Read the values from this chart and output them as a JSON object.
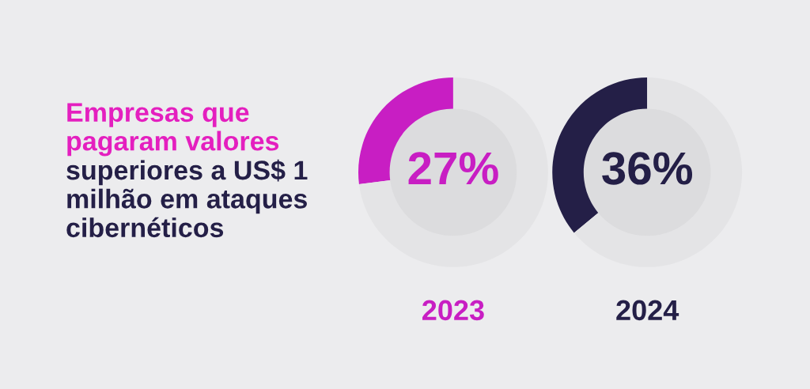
{
  "chart_data": [
    {
      "type": "other",
      "title": "Empresas que pagaram valores",
      "subtitle": "superiores a US$ 1 milhão em ataques cibernéticos"
    },
    {
      "type": "donut",
      "title": "2023",
      "categories": [
        null,
        null
      ],
      "values": [
        27,
        73
      ],
      "colors": [
        "#c81ec3",
        "#e4e4e6"
      ],
      "value_labels": [
        "27%",
        null
      ]
    },
    {
      "type": "donut",
      "title": "2024",
      "categories": [
        null,
        null
      ],
      "values": [
        36,
        64
      ],
      "colors": [
        "#241f47",
        "#e4e4e6"
      ],
      "value_labels": [
        "36%",
        null
      ]
    }
  ]
}
